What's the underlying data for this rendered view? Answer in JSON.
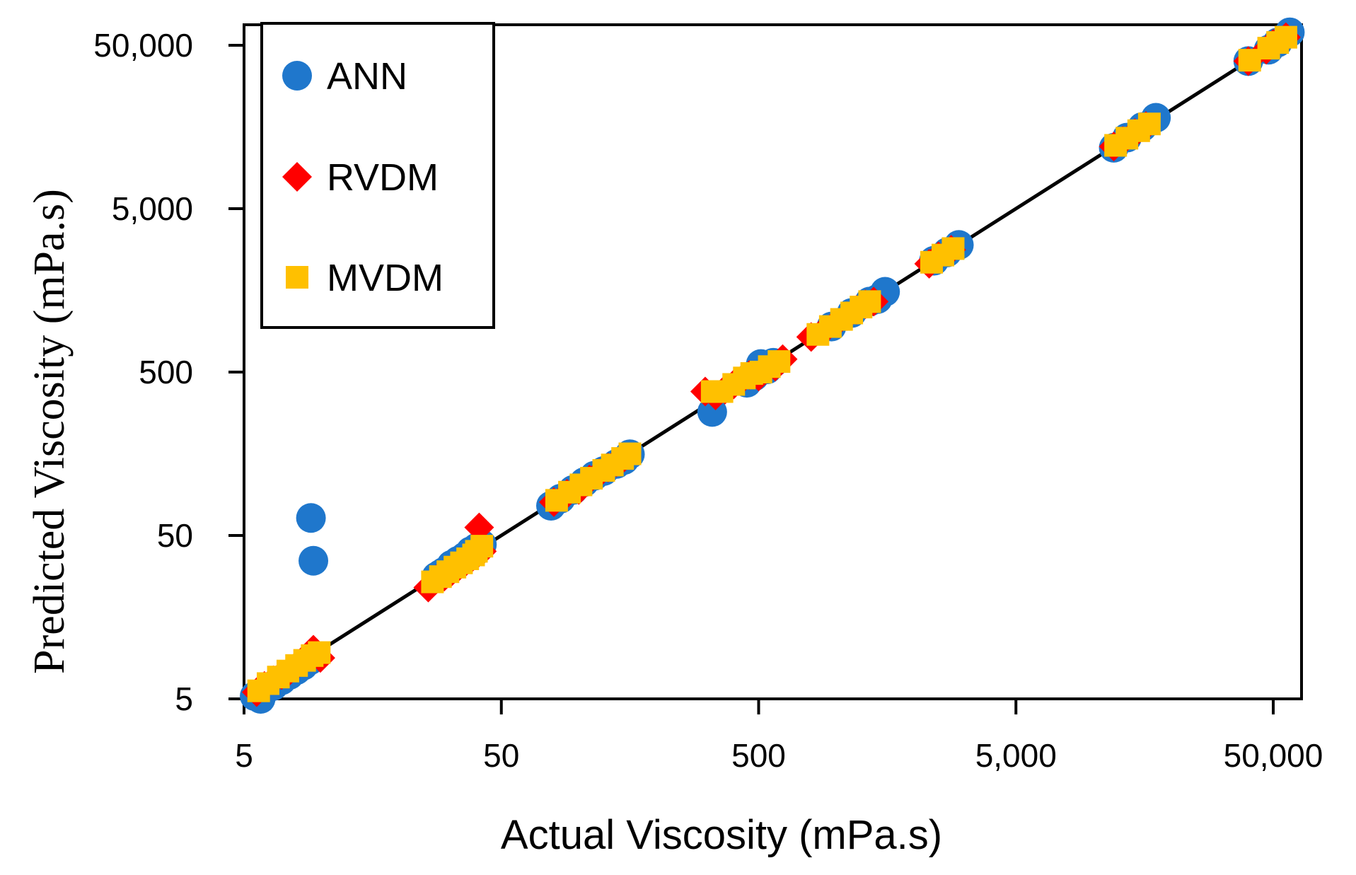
{
  "chart_data": {
    "type": "scatter",
    "title": "",
    "xlabel": "Actual Viscosity (mPa.s)",
    "ylabel": "Predicted Viscosity (mPa.s)",
    "xscale": "log",
    "yscale": "log",
    "xlim": [
      5,
      60000
    ],
    "ylim": [
      5,
      60000
    ],
    "xticks": [
      5,
      50,
      500,
      5000,
      50000
    ],
    "xtick_labels": [
      "5",
      "50",
      "500",
      "5,000",
      "50,000"
    ],
    "yticks": [
      5,
      50,
      500,
      5000,
      50000
    ],
    "ytick_labels": [
      "5",
      "50",
      "500",
      "5,000",
      "50,000"
    ],
    "grid": false,
    "legend_position": "top-left",
    "reference_line": {
      "name": "y = x",
      "color": "#000000",
      "points": [
        [
          5,
          5
        ],
        [
          60000,
          60000
        ]
      ]
    },
    "series": [
      {
        "name": "ANN",
        "marker": "circle",
        "color": "#1F77CC",
        "points": [
          [
            5.5,
            5.2
          ],
          [
            5.8,
            5.0
          ],
          [
            6.0,
            5.6
          ],
          [
            6.5,
            6.0
          ],
          [
            7.0,
            6.5
          ],
          [
            7.5,
            7.0
          ],
          [
            8.0,
            7.5
          ],
          [
            8.5,
            8.0
          ],
          [
            9.0,
            8.6
          ],
          [
            9.1,
            64
          ],
          [
            9.3,
            35
          ],
          [
            28,
            28
          ],
          [
            29,
            29
          ],
          [
            30,
            30
          ],
          [
            32,
            33
          ],
          [
            34,
            35
          ],
          [
            36,
            37
          ],
          [
            38,
            40
          ],
          [
            40,
            42
          ],
          [
            42,
            44
          ],
          [
            78,
            76
          ],
          [
            85,
            84
          ],
          [
            95,
            95
          ],
          [
            105,
            106
          ],
          [
            115,
            116
          ],
          [
            125,
            124
          ],
          [
            140,
            137
          ],
          [
            150,
            145
          ],
          [
            158,
            157
          ],
          [
            330,
            285
          ],
          [
            450,
            430
          ],
          [
            480,
            470
          ],
          [
            510,
            560
          ],
          [
            540,
            520
          ],
          [
            570,
            570
          ],
          [
            960,
            950
          ],
          [
            1150,
            1150
          ],
          [
            1350,
            1350
          ],
          [
            1450,
            1400
          ],
          [
            1550,
            1550
          ],
          [
            2400,
            2400
          ],
          [
            2700,
            2700
          ],
          [
            3000,
            3000
          ],
          [
            12000,
            11800
          ],
          [
            13500,
            13600
          ],
          [
            15500,
            15800
          ],
          [
            17500,
            18000
          ],
          [
            40000,
            40000
          ],
          [
            48000,
            47000
          ],
          [
            52000,
            52000
          ],
          [
            58000,
            60000
          ]
        ]
      },
      {
        "name": "RVDM",
        "marker": "diamond",
        "color": "#FF0000",
        "points": [
          [
            5.6,
            5.5
          ],
          [
            6.0,
            6.0
          ],
          [
            6.5,
            6.5
          ],
          [
            7.0,
            7.0
          ],
          [
            7.5,
            7.4
          ],
          [
            8.0,
            8.0
          ],
          [
            8.5,
            8.6
          ],
          [
            9.0,
            9.3
          ],
          [
            9.3,
            10
          ],
          [
            9.9,
            8.9
          ],
          [
            26,
            24
          ],
          [
            28,
            27
          ],
          [
            30,
            28
          ],
          [
            32,
            30
          ],
          [
            34,
            32
          ],
          [
            36,
            34
          ],
          [
            38,
            36
          ],
          [
            40,
            38
          ],
          [
            42,
            40
          ],
          [
            41,
            56
          ],
          [
            80,
            80
          ],
          [
            90,
            90
          ],
          [
            100,
            95
          ],
          [
            110,
            110
          ],
          [
            120,
            120
          ],
          [
            130,
            130
          ],
          [
            140,
            140
          ],
          [
            150,
            150
          ],
          [
            310,
            380
          ],
          [
            340,
            360
          ],
          [
            370,
            390
          ],
          [
            400,
            420
          ],
          [
            430,
            450
          ],
          [
            460,
            480
          ],
          [
            500,
            470
          ],
          [
            520,
            510
          ],
          [
            580,
            540
          ],
          [
            620,
            600
          ],
          [
            800,
            820
          ],
          [
            900,
            900
          ],
          [
            1000,
            1000
          ],
          [
            1100,
            1100
          ],
          [
            1200,
            1200
          ],
          [
            1300,
            1300
          ],
          [
            1400,
            1350
          ],
          [
            2300,
            2300
          ],
          [
            2500,
            2550
          ],
          [
            2800,
            2800
          ],
          [
            12000,
            12000
          ],
          [
            13000,
            13000
          ],
          [
            14500,
            14500
          ],
          [
            16000,
            16000
          ],
          [
            40000,
            40000
          ],
          [
            47000,
            47000
          ],
          [
            50000,
            51000
          ],
          [
            56000,
            56000
          ]
        ]
      },
      {
        "name": "MVDM",
        "marker": "square",
        "color": "#FFC000",
        "points": [
          [
            5.7,
            5.6
          ],
          [
            6.2,
            6.2
          ],
          [
            6.8,
            6.8
          ],
          [
            7.4,
            7.4
          ],
          [
            8.0,
            8.0
          ],
          [
            8.6,
            8.6
          ],
          [
            9.2,
            9.2
          ],
          [
            9.8,
            9.6
          ],
          [
            27,
            26
          ],
          [
            29,
            28
          ],
          [
            31,
            30
          ],
          [
            33,
            32
          ],
          [
            35,
            34
          ],
          [
            37,
            36
          ],
          [
            39,
            38
          ],
          [
            40,
            40
          ],
          [
            42,
            43
          ],
          [
            82,
            82
          ],
          [
            92,
            92
          ],
          [
            102,
            102
          ],
          [
            112,
            112
          ],
          [
            125,
            125
          ],
          [
            135,
            135
          ],
          [
            148,
            148
          ],
          [
            158,
            158
          ],
          [
            330,
            380
          ],
          [
            360,
            380
          ],
          [
            400,
            420
          ],
          [
            440,
            460
          ],
          [
            470,
            490
          ],
          [
            510,
            500
          ],
          [
            550,
            540
          ],
          [
            600,
            580
          ],
          [
            850,
            850
          ],
          [
            950,
            950
          ],
          [
            1050,
            1050
          ],
          [
            1150,
            1150
          ],
          [
            1250,
            1250
          ],
          [
            1350,
            1350
          ],
          [
            2350,
            2350
          ],
          [
            2600,
            2600
          ],
          [
            2850,
            2850
          ],
          [
            12200,
            12200
          ],
          [
            13500,
            13500
          ],
          [
            15000,
            15000
          ],
          [
            16500,
            16500
          ],
          [
            40500,
            40500
          ],
          [
            48000,
            48000
          ],
          [
            52000,
            52000
          ],
          [
            56000,
            56000
          ]
        ]
      }
    ]
  }
}
